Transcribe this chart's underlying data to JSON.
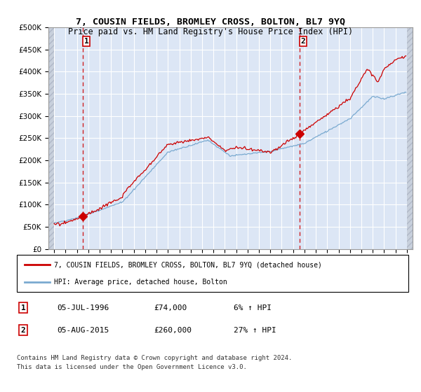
{
  "title": "7, COUSIN FIELDS, BROMLEY CROSS, BOLTON, BL7 9YQ",
  "subtitle": "Price paid vs. HM Land Registry's House Price Index (HPI)",
  "ytick_vals": [
    0,
    50000,
    100000,
    150000,
    200000,
    250000,
    300000,
    350000,
    400000,
    450000,
    500000
  ],
  "ylim": [
    0,
    500000
  ],
  "xlim_start": 1993.5,
  "xlim_end": 2025.5,
  "sale1_year": 1996.54,
  "sale1_price": 74000,
  "sale1_label": "1",
  "sale1_date": "05-JUL-1996",
  "sale1_price_str": "£74,000",
  "sale1_hpi": "6% ↑ HPI",
  "sale2_year": 2015.59,
  "sale2_price": 260000,
  "sale2_label": "2",
  "sale2_date": "05-AUG-2015",
  "sale2_price_str": "£260,000",
  "sale2_hpi": "27% ↑ HPI",
  "line1_color": "#cc0000",
  "line2_color": "#7aaad0",
  "bg_color": "#dce6f5",
  "hatch_color": "#c8d0dc",
  "grid_color": "#ffffff",
  "legend1_label": "7, COUSIN FIELDS, BROMLEY CROSS, BOLTON, BL7 9YQ (detached house)",
  "legend2_label": "HPI: Average price, detached house, Bolton",
  "footer": "Contains HM Land Registry data © Crown copyright and database right 2024.\nThis data is licensed under the Open Government Licence v3.0."
}
